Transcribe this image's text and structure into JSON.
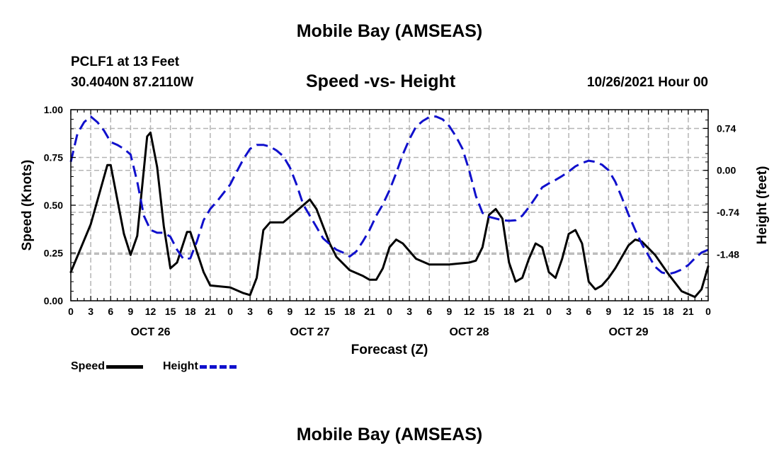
{
  "header": {
    "title": "Mobile Bay (AMSEAS)",
    "station": "PCLF1 at 13 Feet",
    "coords": "30.4040N  87.2110W",
    "subtitle": "Speed -vs- Height",
    "datetime": "10/26/2021 Hour 00"
  },
  "footer": {
    "title": "Mobile Bay (AMSEAS)"
  },
  "legend": {
    "speed": "Speed",
    "height": "Height"
  },
  "colors": {
    "speed": "#000000",
    "height": "#1010cc",
    "grid": "#b4b4b4"
  },
  "chart_data": {
    "type": "line",
    "xlabel": "Forecast (Z)",
    "ylabel_left": "Speed (Knots)",
    "ylabel_right": "Height (feet)",
    "x_unit": "hours since 10/26/2021 00Z",
    "xlim": [
      0,
      96
    ],
    "ylim_left": [
      0,
      1.0
    ],
    "ylim_right": [
      -2.3,
      1.07
    ],
    "x_tick_labels": [
      "0",
      "3",
      "6",
      "9",
      "12",
      "15",
      "18",
      "21",
      "0",
      "3",
      "6",
      "9",
      "12",
      "15",
      "18",
      "21",
      "0",
      "3",
      "6",
      "9",
      "12",
      "15",
      "18",
      "21",
      "0",
      "3",
      "6",
      "9",
      "12",
      "15",
      "18",
      "21",
      "0"
    ],
    "y_ticks_left": [
      "0.00",
      "0.25",
      "0.50",
      "0.75",
      "1.00"
    ],
    "y_ticks_right": [
      "0.74",
      "0.00",
      "-0.74",
      "-1.48"
    ],
    "y_ticks_right_values": [
      0.74,
      0.0,
      -0.74,
      -1.48
    ],
    "day_labels": [
      {
        "label": "OCT 26",
        "hour": 12
      },
      {
        "label": "OCT 27",
        "hour": 36
      },
      {
        "label": "OCT 28",
        "hour": 60
      },
      {
        "label": "OCT 29",
        "hour": 84
      }
    ],
    "grid": true,
    "series": [
      {
        "name": "Speed",
        "axis": "left",
        "style": "solid",
        "points": [
          [
            0,
            0.15
          ],
          [
            3,
            0.4
          ],
          [
            5.5,
            0.71
          ],
          [
            6,
            0.71
          ],
          [
            8,
            0.35
          ],
          [
            9,
            0.24
          ],
          [
            10,
            0.34
          ],
          [
            11.5,
            0.86
          ],
          [
            12,
            0.88
          ],
          [
            13,
            0.7
          ],
          [
            14,
            0.39
          ],
          [
            15,
            0.17
          ],
          [
            16,
            0.2
          ],
          [
            17.5,
            0.36
          ],
          [
            18,
            0.36
          ],
          [
            20,
            0.15
          ],
          [
            21,
            0.08
          ],
          [
            24,
            0.07
          ],
          [
            26,
            0.04
          ],
          [
            27,
            0.03
          ],
          [
            28,
            0.12
          ],
          [
            29,
            0.37
          ],
          [
            30,
            0.41
          ],
          [
            32,
            0.41
          ],
          [
            34,
            0.47
          ],
          [
            36,
            0.53
          ],
          [
            37,
            0.48
          ],
          [
            39,
            0.3
          ],
          [
            40,
            0.23
          ],
          [
            42,
            0.16
          ],
          [
            44,
            0.13
          ],
          [
            45,
            0.11
          ],
          [
            46,
            0.11
          ],
          [
            47,
            0.17
          ],
          [
            48,
            0.28
          ],
          [
            49,
            0.32
          ],
          [
            50,
            0.3
          ],
          [
            52,
            0.22
          ],
          [
            54,
            0.19
          ],
          [
            57,
            0.19
          ],
          [
            60,
            0.2
          ],
          [
            61,
            0.21
          ],
          [
            62,
            0.28
          ],
          [
            63,
            0.45
          ],
          [
            64,
            0.48
          ],
          [
            65,
            0.43
          ],
          [
            66,
            0.2
          ],
          [
            67,
            0.1
          ],
          [
            68,
            0.12
          ],
          [
            69,
            0.22
          ],
          [
            70,
            0.3
          ],
          [
            71,
            0.28
          ],
          [
            72,
            0.15
          ],
          [
            73,
            0.12
          ],
          [
            74,
            0.22
          ],
          [
            75,
            0.35
          ],
          [
            76,
            0.37
          ],
          [
            77,
            0.3
          ],
          [
            78,
            0.1
          ],
          [
            79,
            0.06
          ],
          [
            80,
            0.08
          ],
          [
            81,
            0.12
          ],
          [
            82,
            0.17
          ],
          [
            84,
            0.29
          ],
          [
            85,
            0.32
          ],
          [
            86,
            0.31
          ],
          [
            88,
            0.24
          ],
          [
            90,
            0.14
          ],
          [
            92,
            0.05
          ],
          [
            94,
            0.02
          ],
          [
            95,
            0.06
          ],
          [
            96,
            0.18
          ]
        ]
      },
      {
        "name": "Height",
        "axis": "right",
        "style": "dashed",
        "points": [
          [
            0,
            0.15
          ],
          [
            1,
            0.65
          ],
          [
            2,
            0.85
          ],
          [
            3,
            0.95
          ],
          [
            4,
            0.85
          ],
          [
            5,
            0.7
          ],
          [
            6,
            0.5
          ],
          [
            7,
            0.45
          ],
          [
            8,
            0.38
          ],
          [
            9,
            0.28
          ],
          [
            10,
            -0.2
          ],
          [
            11,
            -0.8
          ],
          [
            12,
            -1.05
          ],
          [
            13,
            -1.1
          ],
          [
            14,
            -1.1
          ],
          [
            15,
            -1.17
          ],
          [
            16,
            -1.4
          ],
          [
            17,
            -1.57
          ],
          [
            18,
            -1.55
          ],
          [
            19,
            -1.25
          ],
          [
            20,
            -0.88
          ],
          [
            21,
            -0.68
          ],
          [
            22,
            -0.55
          ],
          [
            23,
            -0.4
          ],
          [
            24,
            -0.25
          ],
          [
            25,
            -0.02
          ],
          [
            26,
            0.2
          ],
          [
            27,
            0.38
          ],
          [
            28,
            0.45
          ],
          [
            29,
            0.45
          ],
          [
            30,
            0.42
          ],
          [
            31,
            0.35
          ],
          [
            32,
            0.25
          ],
          [
            33,
            0.05
          ],
          [
            34,
            -0.25
          ],
          [
            35,
            -0.6
          ],
          [
            36,
            -0.8
          ],
          [
            37,
            -1.0
          ],
          [
            38,
            -1.2
          ],
          [
            39,
            -1.3
          ],
          [
            40,
            -1.4
          ],
          [
            41,
            -1.45
          ],
          [
            42,
            -1.52
          ],
          [
            43,
            -1.43
          ],
          [
            44,
            -1.25
          ],
          [
            45,
            -1.05
          ],
          [
            46,
            -0.8
          ],
          [
            47,
            -0.6
          ],
          [
            48,
            -0.35
          ],
          [
            49,
            -0.05
          ],
          [
            50,
            0.28
          ],
          [
            51,
            0.55
          ],
          [
            52,
            0.77
          ],
          [
            53,
            0.87
          ],
          [
            54,
            0.94
          ],
          [
            55,
            0.95
          ],
          [
            56,
            0.9
          ],
          [
            57,
            0.78
          ],
          [
            58,
            0.6
          ],
          [
            59,
            0.38
          ],
          [
            60,
            0.0
          ],
          [
            61,
            -0.45
          ],
          [
            62,
            -0.75
          ],
          [
            63,
            -0.82
          ],
          [
            64,
            -0.85
          ],
          [
            65,
            -0.88
          ],
          [
            66,
            -0.89
          ],
          [
            67,
            -0.88
          ],
          [
            68,
            -0.8
          ],
          [
            69,
            -0.65
          ],
          [
            70,
            -0.48
          ],
          [
            71,
            -0.3
          ],
          [
            72,
            -0.23
          ],
          [
            73,
            -0.17
          ],
          [
            74,
            -0.1
          ],
          [
            75,
            -0.02
          ],
          [
            76,
            0.07
          ],
          [
            77,
            0.13
          ],
          [
            78,
            0.17
          ],
          [
            79,
            0.15
          ],
          [
            80,
            0.1
          ],
          [
            81,
            0.0
          ],
          [
            82,
            -0.2
          ],
          [
            83,
            -0.48
          ],
          [
            84,
            -0.78
          ],
          [
            85,
            -1.05
          ],
          [
            86,
            -1.3
          ],
          [
            87,
            -1.5
          ],
          [
            88,
            -1.7
          ],
          [
            89,
            -1.8
          ],
          [
            90,
            -1.83
          ],
          [
            91,
            -1.8
          ],
          [
            92,
            -1.75
          ],
          [
            93,
            -1.67
          ],
          [
            94,
            -1.55
          ],
          [
            95,
            -1.45
          ],
          [
            96,
            -1.4
          ]
        ]
      }
    ]
  }
}
